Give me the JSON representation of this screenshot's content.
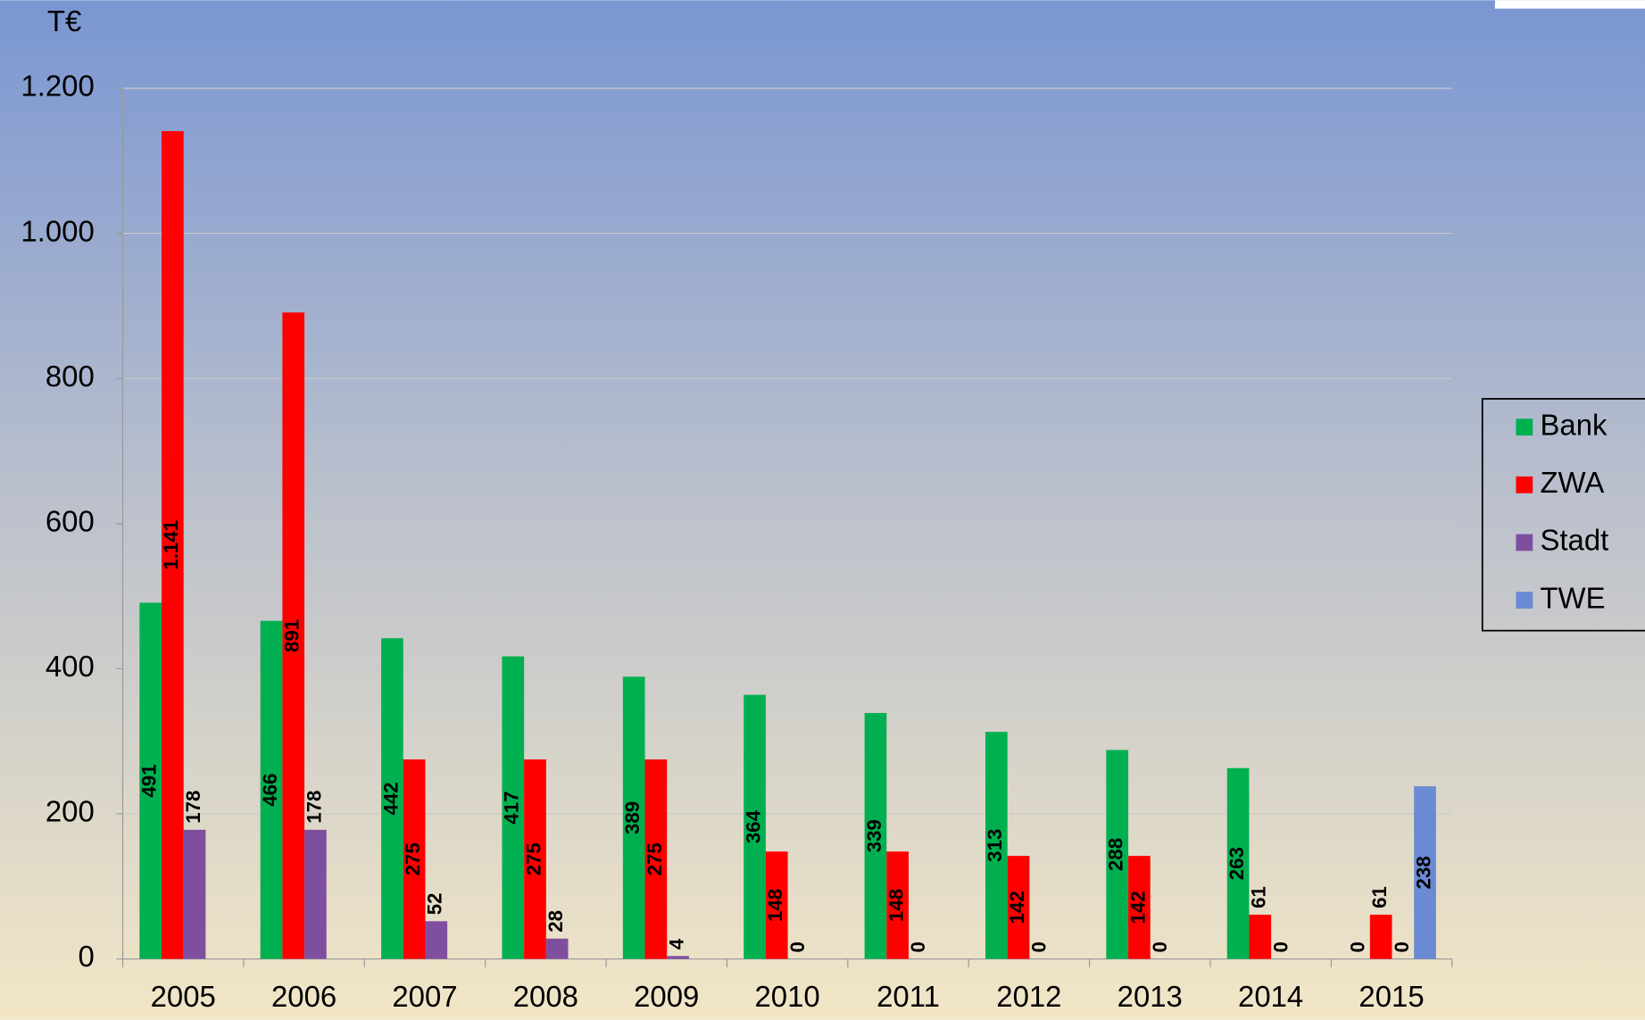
{
  "chart_data": {
    "type": "bar",
    "y_axis_label": "T€",
    "categories": [
      "2005",
      "2006",
      "2007",
      "2008",
      "2009",
      "2010",
      "2011",
      "2012",
      "2013",
      "2014",
      "2015"
    ],
    "series": [
      {
        "name": "Bank",
        "color": "#00b050",
        "values": [
          491,
          466,
          442,
          417,
          389,
          364,
          339,
          313,
          288,
          263,
          0
        ]
      },
      {
        "name": "ZWA",
        "color": "#ff0000",
        "values": [
          1141,
          891,
          275,
          275,
          275,
          148,
          148,
          142,
          142,
          61,
          61
        ],
        "value_labels": [
          "1.141",
          "891",
          "275",
          "275",
          "275",
          "148",
          "148",
          "142",
          "142",
          "61",
          "61"
        ]
      },
      {
        "name": "Stadt",
        "color": "#7f4f9f",
        "values": [
          178,
          178,
          52,
          28,
          4,
          0,
          0,
          0,
          0,
          0,
          0
        ]
      },
      {
        "name": "TWE",
        "color": "#6a8ad4",
        "values": [
          null,
          null,
          null,
          null,
          null,
          null,
          null,
          null,
          null,
          null,
          238
        ]
      }
    ],
    "ylim": [
      0,
      1200
    ],
    "yticks": [
      0,
      200,
      400,
      600,
      800,
      {
        "value": 1000,
        "label": "1.000"
      },
      {
        "value": 1200,
        "label": "1.200"
      }
    ],
    "grid": true,
    "legend_position": "right"
  }
}
